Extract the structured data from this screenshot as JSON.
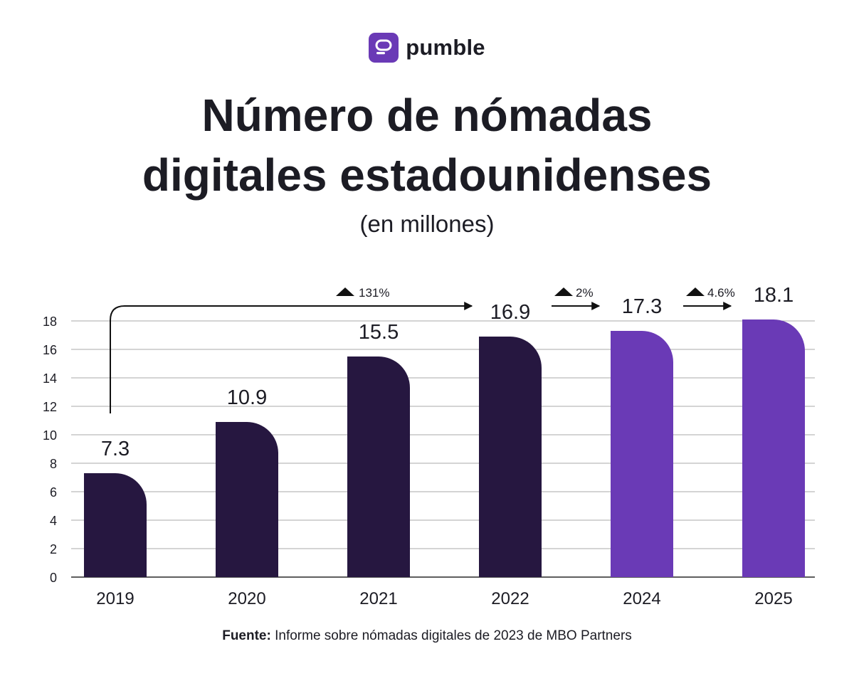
{
  "brand": {
    "name": "pumble",
    "logo_color": "#6a3ab6"
  },
  "chart_data": {
    "type": "bar",
    "title_line1": "Número de nómadas",
    "title_line2": "digitales estadounidenses",
    "subtitle": "(en millones)",
    "categories": [
      "2019",
      "2020",
      "2021",
      "2022",
      "2024",
      "2025"
    ],
    "values": [
      7.3,
      10.9,
      15.5,
      16.9,
      17.3,
      18.1
    ],
    "value_labels": [
      "7.3",
      "10.9",
      "15.5",
      "16.9",
      "17.3",
      "18.1"
    ],
    "bar_colors": [
      "#261740",
      "#261740",
      "#261740",
      "#261740",
      "#6a3ab6",
      "#6a3ab6"
    ],
    "ylim": [
      0,
      18
    ],
    "yticks": [
      "0",
      "2",
      "4",
      "6",
      "8",
      "10",
      "12",
      "14",
      "16",
      "18"
    ],
    "grid": true,
    "annotations": [
      {
        "text": "131%",
        "from": "2019",
        "to": "2022"
      },
      {
        "text": "2%",
        "from": "2022",
        "to": "2024"
      },
      {
        "text": "4.6%",
        "from": "2024",
        "to": "2025"
      }
    ],
    "source_label": "Fuente:",
    "source_text": "Informe sobre nómadas digitales de 2023 de MBO Partners"
  }
}
